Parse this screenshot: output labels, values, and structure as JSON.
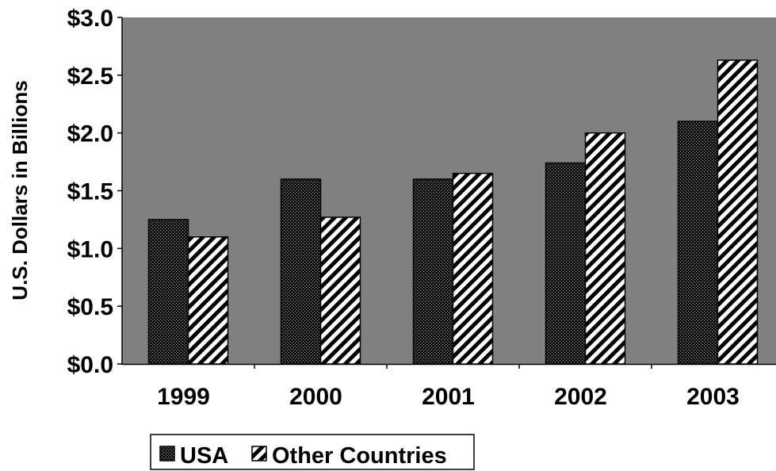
{
  "chart_data": {
    "type": "bar",
    "categories": [
      "1999",
      "2000",
      "2001",
      "2002",
      "2003"
    ],
    "series": [
      {
        "name": "USA",
        "values": [
          1.25,
          1.6,
          1.6,
          1.74,
          2.1
        ],
        "pattern": "crosshatch"
      },
      {
        "name": "Other Countries",
        "values": [
          1.1,
          1.27,
          1.65,
          2.0,
          2.63
        ],
        "pattern": "diagonal"
      }
    ],
    "title": "",
    "xlabel": "",
    "ylabel": "U.S. Dollars in Billions",
    "ylim": [
      0,
      3.0
    ],
    "yticks": [
      "$0.0",
      "$0.5",
      "$1.0",
      "$1.5",
      "$2.0",
      "$2.5",
      "$3.0"
    ],
    "ytick_values": [
      0,
      0.5,
      1.0,
      1.5,
      2.0,
      2.5,
      3.0
    ],
    "grid": false,
    "legend_position": "bottom",
    "colors": {
      "plot_background": "#808080",
      "bar_dark": "#1a1a1a",
      "bar_light": "#ffffff"
    }
  }
}
